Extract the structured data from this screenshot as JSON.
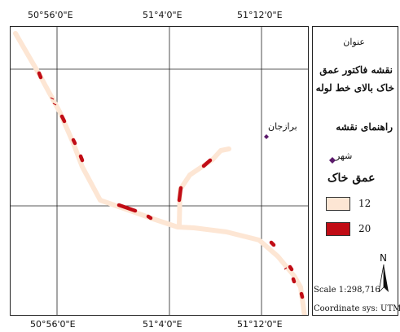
{
  "map": {
    "top_ticks": [
      "50°56'0\"E",
      "51°4'0\"E",
      "51°12'0\"E"
    ],
    "bottom_ticks": [
      "50°56'0\"E",
      "51°4'0\"E",
      "51°12'0\"E"
    ],
    "city_label": "برازجان",
    "colors": {
      "depth_12": "#fde6d4",
      "depth_20": "#c10c15",
      "city": "#5b1a6b",
      "grid": "#222222"
    }
  },
  "legend": {
    "title_heading": "عنوان",
    "title_line1": "نقشه فاکتور عمق",
    "title_line2": "خاک بالای خط لوله",
    "guide_heading": "راهنمای نقشه",
    "city_label": "شهر",
    "depth_heading": "عمق خاک",
    "depth_classes": [
      {
        "label": "12",
        "color": "#fde6d4"
      },
      {
        "label": "20",
        "color": "#c10c15"
      }
    ],
    "north": "N",
    "scale": "Scale 1:298,716",
    "coord_sys": "Coordinate sys: UTM"
  }
}
